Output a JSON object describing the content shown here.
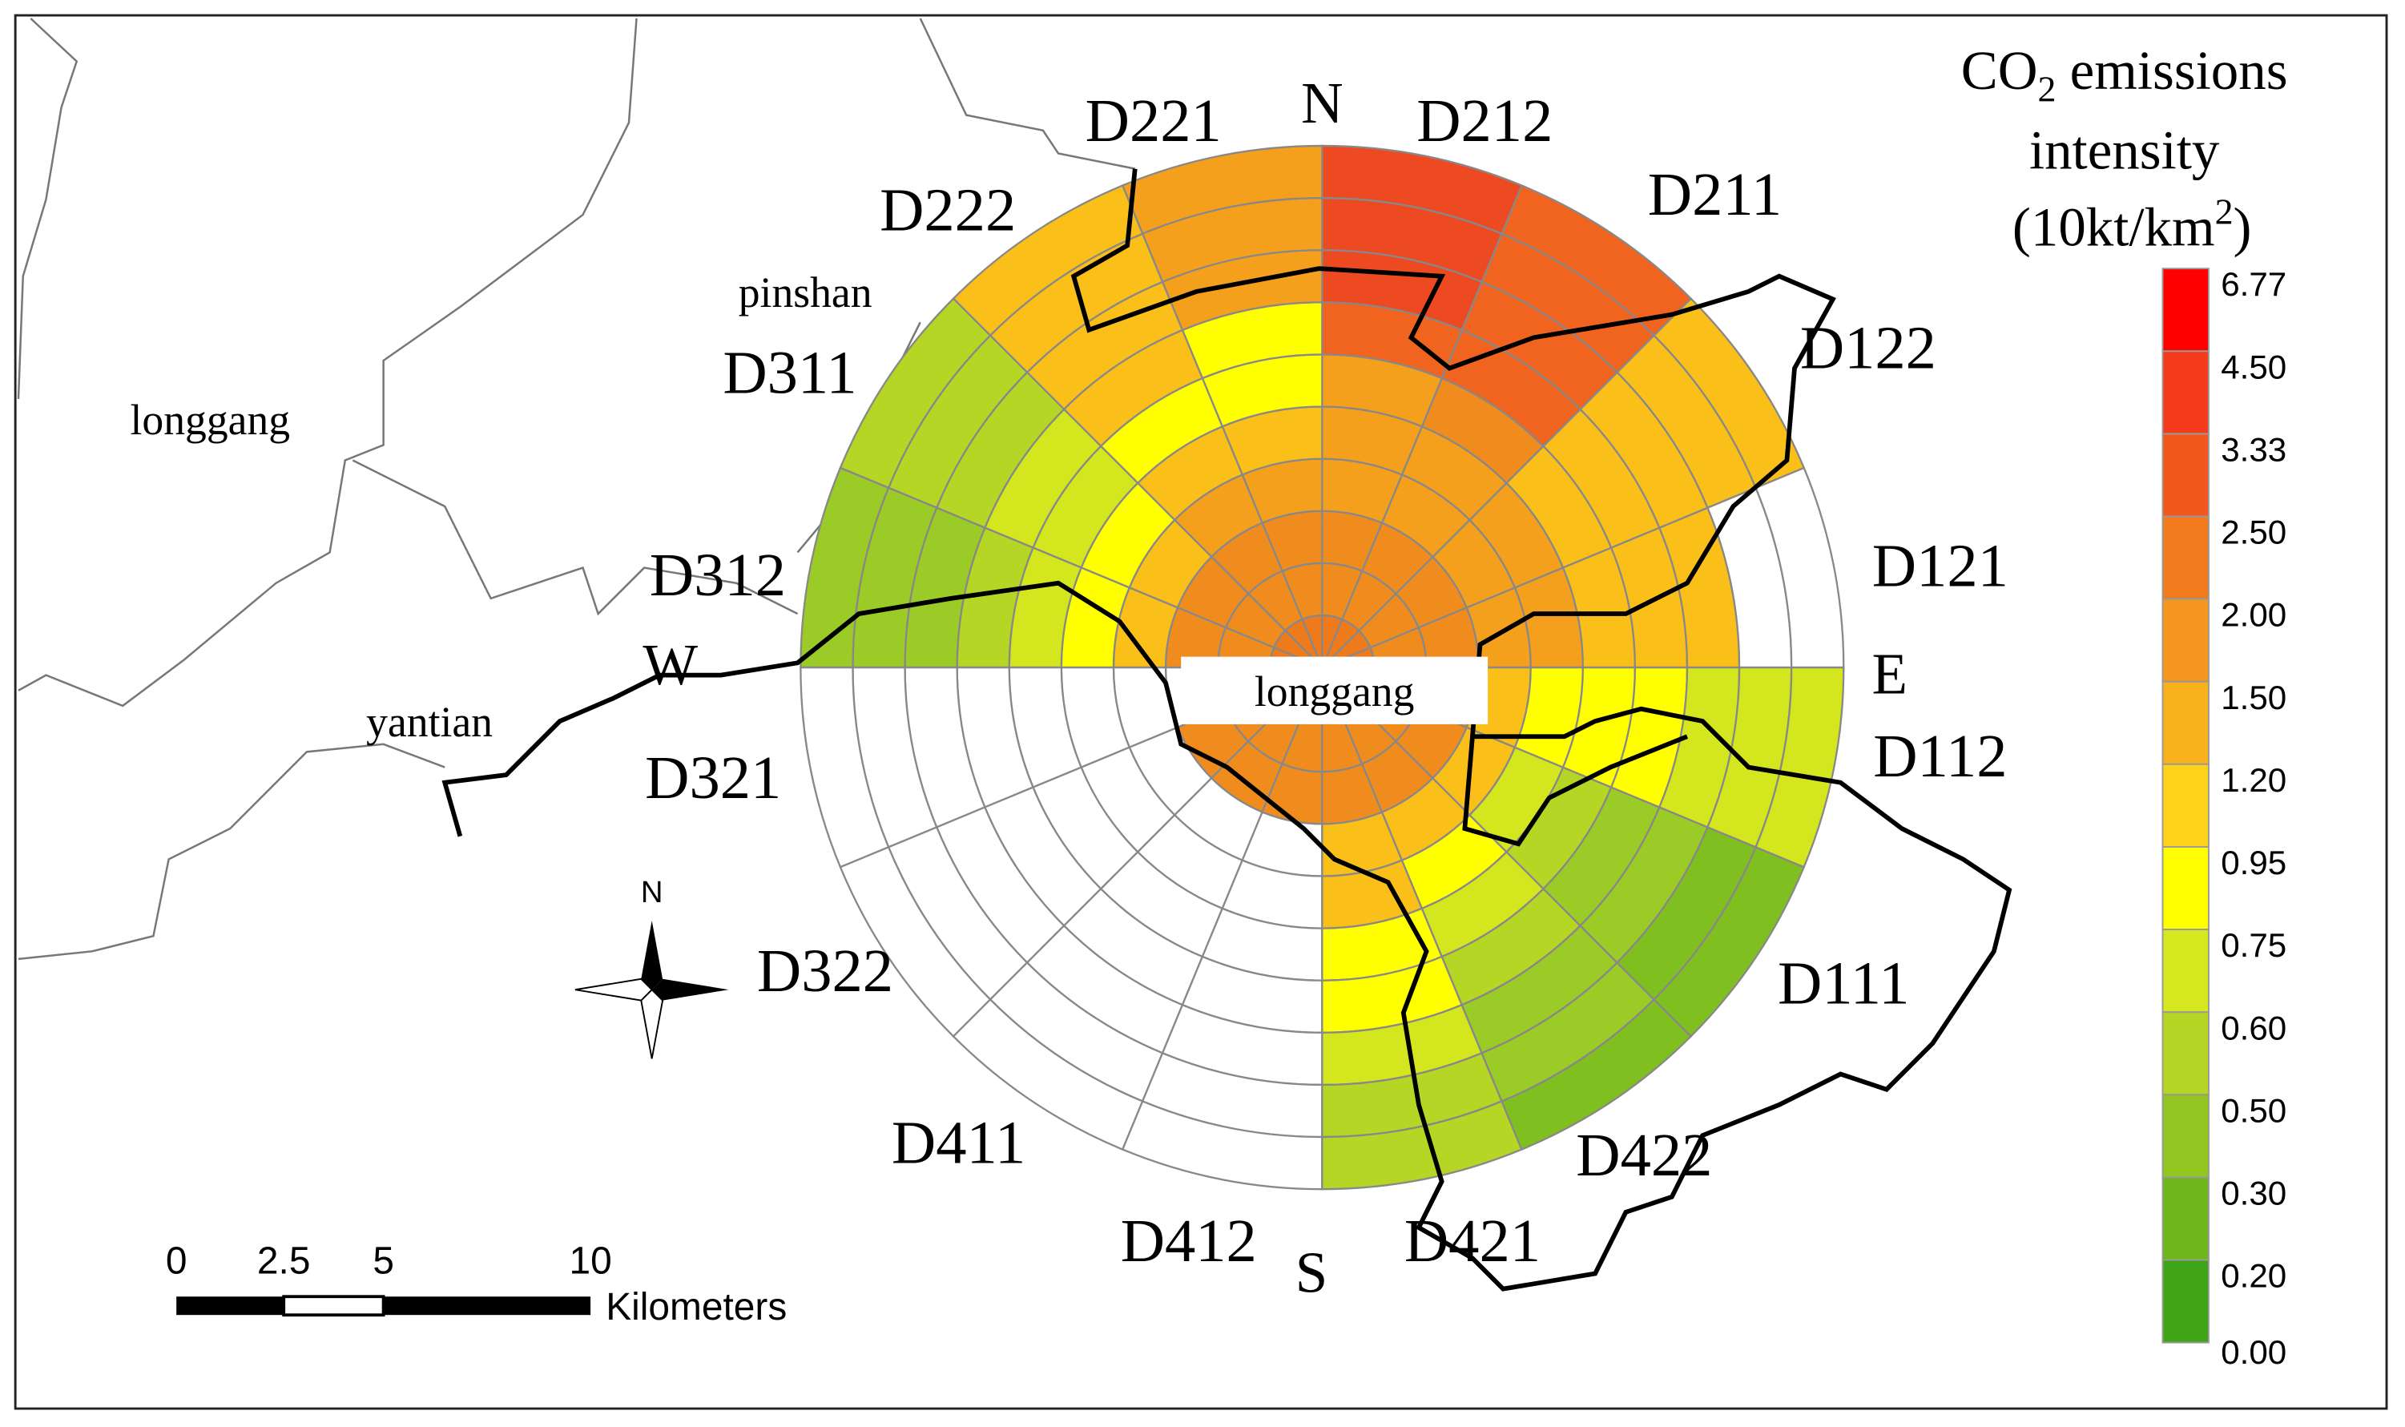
{
  "map": {
    "directions": {
      "north": "N",
      "south": "S",
      "east": "E",
      "west": "W"
    },
    "places": {
      "west_district": "longgang",
      "north_district": "pinshan",
      "south_district": "yantian",
      "center": "longgang"
    },
    "sectors": [
      {
        "label": "D121",
        "colors": [
          "#ee7a1c",
          "#f08c1e",
          "#f08c1e",
          "#f5a01c",
          "#f5a01c",
          "#fbbf19",
          "#fbbf19",
          "#fbbf19",
          "#ffffff",
          "#ffffff"
        ]
      },
      {
        "label": "D122",
        "colors": [
          "#ee7a1c",
          "#f08c1e",
          "#f08c1e",
          "#f5a01c",
          "#f5a01c",
          "#fbbf19",
          "#fbbf19",
          "#fbbf19",
          "#fbbf19",
          "#fbbf19"
        ]
      },
      {
        "label": "D211",
        "colors": [
          "#ee7a1c",
          "#f08c1e",
          "#f08c1e",
          "#f5a01c",
          "#f5a01c",
          "#f08c1e",
          "#f0641f",
          "#f0641f",
          "#f0641f",
          "#f0641f"
        ]
      },
      {
        "label": "D212",
        "colors": [
          "#ee7a1c",
          "#f08c1e",
          "#f08c1e",
          "#f5a01c",
          "#f5a01c",
          "#f5a01c",
          "#f0641f",
          "#ee4a22",
          "#ee4a22",
          "#ee4a22"
        ]
      },
      {
        "label": "D221",
        "colors": [
          "#ee7a1c",
          "#f08c1e",
          "#f08c1e",
          "#f5a01c",
          "#fbbf19",
          "#ffff00",
          "#ffff00",
          "#f5a01c",
          "#f5a01c",
          "#f5a01c"
        ]
      },
      {
        "label": "D222",
        "colors": [
          "#ee7a1c",
          "#f08c1e",
          "#f08c1e",
          "#f5a01c",
          "#fbbf19",
          "#ffff00",
          "#fbbf19",
          "#fbbf19",
          "#fbbf19",
          "#fbbf19"
        ]
      },
      {
        "label": "D311",
        "colors": [
          "#ee7a1c",
          "#f08c1e",
          "#f08c1e",
          "#fbbf19",
          "#ffff00",
          "#d3e61e",
          "#d3e61e",
          "#b5d624",
          "#b5d624",
          "#b5d624"
        ]
      },
      {
        "label": "D312",
        "colors": [
          "#ee7a1c",
          "#f08c1e",
          "#f08c1e",
          "#fbbf19",
          "#ffff00",
          "#d3e61e",
          "#b5d624",
          "#9acb26",
          "#9acb26",
          "#9acb26"
        ]
      },
      {
        "label": "D321",
        "colors": [
          "#ee7a1c",
          "#f08c1e",
          "#ffffff",
          "#ffffff",
          "#ffffff",
          "#ffffff",
          "#ffffff",
          "#ffffff",
          "#ffffff",
          "#ffffff"
        ]
      },
      {
        "label": "D322",
        "colors": [
          "#ee7a1c",
          "#f08c1e",
          "#f08c1e",
          "#ffffff",
          "#ffffff",
          "#ffffff",
          "#ffffff",
          "#ffffff",
          "#ffffff",
          "#ffffff"
        ]
      },
      {
        "label": "D411",
        "colors": [
          "#ee7a1c",
          "#f08c1e",
          "#f08c1e",
          "#ffffff",
          "#ffffff",
          "#ffffff",
          "#ffffff",
          "#ffffff",
          "#ffffff",
          "#ffffff"
        ]
      },
      {
        "label": "D412",
        "colors": [
          "#ee7a1c",
          "#f08c1e",
          "#f08c1e",
          "#ffffff",
          "#ffffff",
          "#ffffff",
          "#ffffff",
          "#ffffff",
          "#ffffff",
          "#ffffff"
        ]
      },
      {
        "label": "D421",
        "colors": [
          "#ee7a1c",
          "#f08c1e",
          "#f08c1e",
          "#fbbf19",
          "#fbbf19",
          "#ffff00",
          "#ffff00",
          "#d3e61e",
          "#b5d624",
          "#b5d624"
        ]
      },
      {
        "label": "D422",
        "colors": [
          "#ee7a1c",
          "#f08c1e",
          "#f08c1e",
          "#fbbf19",
          "#ffff00",
          "#d3e61e",
          "#b5d624",
          "#9acb26",
          "#9acb26",
          "#7fbf1f"
        ]
      },
      {
        "label": "D111",
        "colors": [
          "#ee7a1c",
          "#f08c1e",
          "#f08c1e",
          "#fbbf19",
          "#d3e61e",
          "#b5d624",
          "#9acb26",
          "#9acb26",
          "#7fbf1f",
          "#7fbf1f"
        ]
      },
      {
        "label": "D112",
        "colors": [
          "#ee7a1c",
          "#f08c1e",
          "#f08c1e",
          "#fbbf19",
          "#ffff00",
          "#ffff00",
          "#ffff00",
          "#d3e61e",
          "#d3e61e",
          "#d3e61e"
        ]
      }
    ]
  },
  "legend": {
    "title_line1": {
      "text": "CO",
      "subscript": "2",
      "rest": " emissions"
    },
    "title_line2": "intensity",
    "title_line3": {
      "text": "(10kt/km",
      "superscript": "2",
      "rest": ")"
    },
    "labels": [
      "6.77",
      "4.50",
      "3.33",
      "2.50",
      "2.00",
      "1.50",
      "1.20",
      "0.95",
      "0.75",
      "0.60",
      "0.50",
      "0.30",
      "0.20",
      "0.00"
    ],
    "colors": [
      "#ff0000",
      "#f43a1a",
      "#f2581c",
      "#f07a1c",
      "#f5961e",
      "#fab21c",
      "#ffd21a",
      "#ffff00",
      "#d6e81f",
      "#b5d624",
      "#92c51f",
      "#6fb51c",
      "#3fa516"
    ]
  },
  "scale_bar": {
    "ticks": [
      "0",
      "2.5",
      "5",
      "10"
    ],
    "unit": "Kilometers"
  },
  "compass": {
    "label": "N"
  }
}
